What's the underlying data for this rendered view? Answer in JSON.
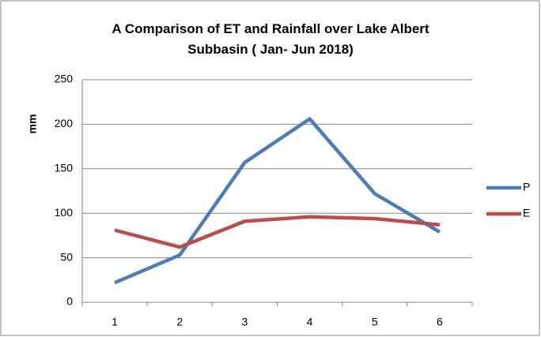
{
  "chart_data": {
    "type": "line",
    "title": "A Comparison of ET and Rainfall over Lake Albert Subbasin ( Jan- Jun 2018)",
    "y_label": "mm",
    "categories": [
      "1",
      "2",
      "3",
      "4",
      "5",
      "6"
    ],
    "series": [
      {
        "name": "P",
        "color": "#4a7ebb",
        "values": [
          22,
          53,
          157,
          206,
          122,
          79
        ]
      },
      {
        "name": "E",
        "color": "#be4b48",
        "values": [
          81,
          62,
          91,
          96,
          94,
          87
        ]
      }
    ],
    "ylim": [
      0,
      250
    ],
    "yticks": [
      0,
      50,
      100,
      150,
      200,
      250
    ],
    "grid": true,
    "legend": "right"
  }
}
